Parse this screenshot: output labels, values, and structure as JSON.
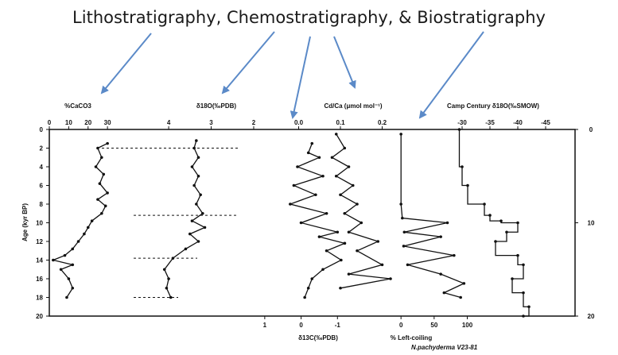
{
  "title": "Lithostratigraphy, Chemostratigraphy, & Biostratigraphy",
  "colors": {
    "arrow": "#5b8ac8",
    "ink": "#111111"
  },
  "chart_data": {
    "type": "line",
    "y_axis": {
      "label": "Age (kyr BP)",
      "range": [
        0,
        20
      ],
      "ticks": [
        "0",
        "2",
        "4",
        "6",
        "8",
        "10",
        "12",
        "14",
        "16",
        "18",
        "20"
      ],
      "right_ticks": [
        "0",
        "10",
        "20"
      ]
    },
    "panels": [
      {
        "id": "caco3",
        "label": "%CaCO3",
        "ticks": [
          "0",
          "10",
          "20",
          "30"
        ],
        "range": [
          0,
          32
        ],
        "points": [
          [
            30,
            1.5
          ],
          [
            25,
            2.0
          ],
          [
            27,
            3.0
          ],
          [
            24,
            4.0
          ],
          [
            28,
            4.8
          ],
          [
            26,
            5.8
          ],
          [
            30,
            6.8
          ],
          [
            25,
            7.5
          ],
          [
            29,
            8.2
          ],
          [
            27,
            9.0
          ],
          [
            22,
            9.8
          ],
          [
            20,
            10.5
          ],
          [
            18,
            11.2
          ],
          [
            15,
            12.0
          ],
          [
            12,
            12.8
          ],
          [
            8,
            13.5
          ],
          [
            2,
            14.0
          ],
          [
            12,
            14.5
          ],
          [
            6,
            15.0
          ],
          [
            10,
            16.0
          ],
          [
            12,
            17.0
          ],
          [
            9,
            18.0
          ]
        ]
      },
      {
        "id": "d18o",
        "label": "δ18O(‰PDB)",
        "ticks": [
          "4",
          "3",
          "2"
        ],
        "range": [
          4.6,
          1.7
        ],
        "points": [
          [
            3.35,
            1.2
          ],
          [
            3.4,
            2.0
          ],
          [
            3.3,
            3.0
          ],
          [
            3.45,
            4.0
          ],
          [
            3.3,
            5.0
          ],
          [
            3.4,
            6.0
          ],
          [
            3.25,
            7.0
          ],
          [
            3.35,
            8.0
          ],
          [
            3.2,
            9.0
          ],
          [
            3.45,
            9.8
          ],
          [
            3.15,
            10.5
          ],
          [
            3.5,
            11.2
          ],
          [
            3.3,
            12.0
          ],
          [
            3.6,
            12.8
          ],
          [
            3.9,
            13.8
          ],
          [
            4.1,
            15.0
          ],
          [
            4.0,
            16.0
          ],
          [
            4.05,
            17.0
          ],
          [
            3.95,
            18.0
          ]
        ]
      },
      {
        "id": "d13c",
        "label": "δ13C(‰PDB)",
        "ticks": [
          "1",
          "0",
          "-1"
        ],
        "range": [
          1.5,
          -2.0
        ],
        "points": [
          [
            -0.3,
            1.5
          ],
          [
            -0.2,
            2.5
          ],
          [
            -0.5,
            3.0
          ],
          [
            0.1,
            4.0
          ],
          [
            -0.6,
            5.0
          ],
          [
            0.2,
            6.0
          ],
          [
            -0.4,
            7.0
          ],
          [
            0.3,
            8.0
          ],
          [
            -0.7,
            9.0
          ],
          [
            0.0,
            10.0
          ],
          [
            -1.0,
            11.0
          ],
          [
            -0.5,
            11.5
          ],
          [
            -1.2,
            12.2
          ],
          [
            -0.7,
            13.0
          ],
          [
            -1.1,
            14.0
          ],
          [
            -0.6,
            15.0
          ],
          [
            -0.3,
            16.0
          ],
          [
            -0.2,
            17.0
          ],
          [
            -0.1,
            18.0
          ]
        ]
      },
      {
        "id": "cdca",
        "label": "Cd/Ca (μmol mol⁻¹)",
        "ticks": [
          "0.0",
          "0.1",
          "0.2"
        ],
        "range": [
          -0.02,
          0.26
        ],
        "points": [
          [
            0.09,
            0.5
          ],
          [
            0.11,
            2.0
          ],
          [
            0.08,
            3.0
          ],
          [
            0.12,
            4.0
          ],
          [
            0.09,
            5.0
          ],
          [
            0.13,
            6.0
          ],
          [
            0.1,
            7.0
          ],
          [
            0.14,
            8.0
          ],
          [
            0.11,
            9.0
          ],
          [
            0.15,
            10.0
          ],
          [
            0.12,
            11.0
          ],
          [
            0.19,
            12.0
          ],
          [
            0.14,
            13.0
          ],
          [
            0.2,
            14.5
          ],
          [
            0.12,
            15.5
          ],
          [
            0.22,
            16.0
          ],
          [
            0.1,
            17.0
          ]
        ]
      },
      {
        "id": "leftcoiling",
        "label": "% Left-coiling",
        "sublabel": "N.pachyderma V23-81",
        "ticks": [
          "0",
          "50",
          "100"
        ],
        "range": [
          -5,
          115
        ],
        "points": [
          [
            0,
            0.5
          ],
          [
            0,
            8.0
          ],
          [
            2,
            9.5
          ],
          [
            70,
            10.0
          ],
          [
            5,
            11.0
          ],
          [
            60,
            11.5
          ],
          [
            4,
            12.5
          ],
          [
            80,
            13.5
          ],
          [
            10,
            14.5
          ],
          [
            60,
            15.5
          ],
          [
            95,
            16.5
          ],
          [
            65,
            17.5
          ],
          [
            90,
            18.0
          ]
        ]
      },
      {
        "id": "campcentury",
        "label": "Camp Century δ18O(‰SMOW)",
        "ticks": [
          "-30",
          "-35",
          "-40",
          "-45"
        ],
        "range": [
          -27,
          -47
        ],
        "points": [
          [
            -29.5,
            0.0
          ],
          [
            -30,
            4.0
          ],
          [
            -31,
            6.0
          ],
          [
            -34,
            8.0
          ],
          [
            -35,
            9.2
          ],
          [
            -37,
            9.8
          ],
          [
            -40,
            10.0
          ],
          [
            -38,
            11.0
          ],
          [
            -36,
            12.0
          ],
          [
            -40,
            13.5
          ],
          [
            -41,
            14.5
          ],
          [
            -39,
            16.0
          ],
          [
            -41,
            17.5
          ],
          [
            -42,
            19.0
          ],
          [
            -41,
            20.0
          ]
        ]
      }
    ]
  }
}
